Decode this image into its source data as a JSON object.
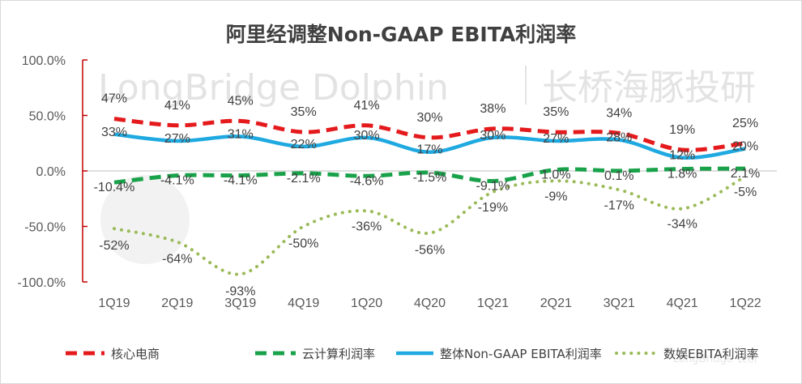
{
  "chart_data": {
    "type": "line",
    "title": "阿里经调整Non-GAAP EBITA利润率",
    "xlabel": "",
    "ylabel": "",
    "categories": [
      "1Q19",
      "2Q19",
      "3Q19",
      "4Q19",
      "1Q20",
      "4Q20",
      "1Q21",
      "2Q21",
      "3Q21",
      "4Q21",
      "1Q22"
    ],
    "ylim": [
      -100,
      100
    ],
    "yticks": [
      "100.0%",
      "50.0%",
      "0.0%",
      "-50.0%",
      "-100.0%"
    ],
    "ytick_values": [
      100,
      50,
      0,
      -50,
      -100
    ],
    "grid": false,
    "legend_position": "bottom",
    "series": [
      {
        "name": "核心电商",
        "color": "#e41a1c",
        "style": "dashed",
        "values": [
          47,
          41,
          45,
          35,
          41,
          30,
          38,
          35,
          34,
          19,
          25
        ],
        "labels": [
          "47%",
          "41%",
          "45%",
          "35%",
          "41%",
          "30%",
          "38%",
          "35%",
          "34%",
          "19%",
          "25%"
        ]
      },
      {
        "name": "云计算利润率",
        "color": "#1aa24b",
        "style": "dashed",
        "values": [
          -10.4,
          -4.1,
          -4.1,
          -2.1,
          -4.6,
          -1.5,
          -9.1,
          1.0,
          0.1,
          1.8,
          2.1
        ],
        "labels": [
          "-10.4%",
          "-4.1%",
          "-4.1%",
          "-2.1%",
          "-4.6%",
          "-1.5%",
          "-9.1%",
          "1.0%",
          "0.1%",
          "1.8%",
          "2.1%"
        ]
      },
      {
        "name": "整体Non-GAAP EBITA利润率",
        "color": "#1fa9e1",
        "style": "solid",
        "values": [
          33,
          27,
          31,
          22,
          30,
          17,
          30,
          27,
          28,
          12,
          20
        ],
        "labels": [
          "33%",
          "27%",
          "31%",
          "22%",
          "30%",
          "17%",
          "30%",
          "27%",
          "28%",
          "12%",
          "20%"
        ]
      },
      {
        "name": "数娱EBITA利润率",
        "color": "#9bbb59",
        "style": "dotted",
        "values": [
          -52,
          -64,
          -93,
          -50,
          -36,
          -56,
          -19,
          -9,
          -17,
          -34,
          -5
        ],
        "labels": [
          "-52%",
          "-64%",
          "-93%",
          "-50%",
          "-36%",
          "-56%",
          "-19%",
          "-9%",
          "-17%",
          "-34%",
          "-5%"
        ]
      }
    ]
  },
  "watermark": {
    "text_en": "LongBridge Dolphin",
    "text_cn": "长桥海豚投研",
    "corner_text": "LongBridge 长桥"
  },
  "colors": {
    "axis_left": "#c00000",
    "axis_zero": "#bfbfbf",
    "text": "#404040"
  }
}
